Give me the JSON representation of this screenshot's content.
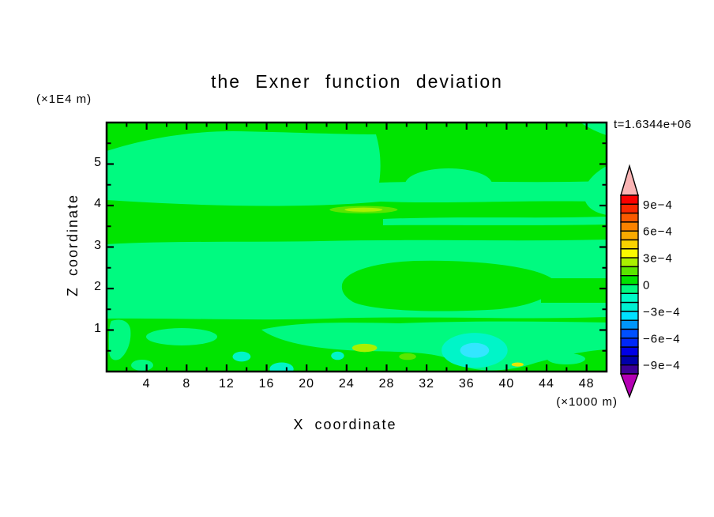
{
  "palette": {
    "background": "#ffffff",
    "frame": "#000000",
    "green": "#00e400",
    "spring_green": "#00fa80",
    "turquoise": "#00f5c8",
    "cyan": "#33e6ff",
    "chartreuse": "#5ae600",
    "yellow_green": "#aaf000",
    "yellow": "#e8e600"
  },
  "chart_data": {
    "type": "heatmap",
    "subtype": "filled-contour",
    "title": "the Exner function deviation",
    "time_annotation": "t=1.6344e+06",
    "xlabel": "X coordinate",
    "x_unit": "(×1000 m)",
    "ylabel": "Z coordinate",
    "y_unit": "(×1E4 m)",
    "xlim": [
      0,
      50
    ],
    "ylim": [
      0,
      6
    ],
    "x_major_ticks": [
      4,
      8,
      12,
      16,
      20,
      24,
      28,
      32,
      36,
      40,
      44,
      48
    ],
    "x_minor_interval": 2,
    "y_major_ticks": [
      1,
      2,
      3,
      4,
      5
    ],
    "y_minor_interval": 0.5,
    "grid": false,
    "contour_interval": 0.0001,
    "field_note": "Field is dominated by values between -1e-4 and +1e-4 (green above 0, spring green below 0), with small warm anomalies up to ~3e-4 and cool anomalies down to ~-3e-4 near the bottom of the domain.",
    "colorbar": {
      "position": "right",
      "over_color": "#fab4b4",
      "under_color": "#b400b4",
      "labels": [
        {
          "text": "9e−4",
          "level": 0.0009
        },
        {
          "text": "6e−4",
          "level": 0.0006
        },
        {
          "text": "3e−4",
          "level": 0.0003
        },
        {
          "text": "0",
          "level": 0
        },
        {
          "text": "−3e−4",
          "level": -0.0003
        },
        {
          "text": "−6e−4",
          "level": -0.0006
        },
        {
          "text": "−9e−4",
          "level": -0.0009
        }
      ],
      "segments": [
        {
          "min": 0.0009,
          "max": 0.001,
          "color": "#fa0000"
        },
        {
          "min": 0.0008,
          "max": 0.0009,
          "color": "#fa2800"
        },
        {
          "min": 0.0007,
          "max": 0.0008,
          "color": "#fa5a00"
        },
        {
          "min": 0.0006,
          "max": 0.0007,
          "color": "#fa8200"
        },
        {
          "min": 0.0005,
          "max": 0.0006,
          "color": "#faaa00"
        },
        {
          "min": 0.0004,
          "max": 0.0005,
          "color": "#fad200"
        },
        {
          "min": 0.0003,
          "max": 0.0004,
          "color": "#fafa00"
        },
        {
          "min": 0.0002,
          "max": 0.0003,
          "color": "#aaf000"
        },
        {
          "min": 0.0001,
          "max": 0.0002,
          "color": "#5ae600"
        },
        {
          "min": 0,
          "max": 0.0001,
          "color": "#00e400"
        },
        {
          "min": -0.0001,
          "max": 0,
          "color": "#00fa80"
        },
        {
          "min": -0.0002,
          "max": -0.0001,
          "color": "#00fac8"
        },
        {
          "min": -0.0003,
          "max": -0.0002,
          "color": "#00f0d2"
        },
        {
          "min": -0.0004,
          "max": -0.0003,
          "color": "#00e1ff"
        },
        {
          "min": -0.0005,
          "max": -0.0004,
          "color": "#0096fa"
        },
        {
          "min": -0.0006,
          "max": -0.0005,
          "color": "#0050ff"
        },
        {
          "min": -0.0007,
          "max": -0.0006,
          "color": "#0028fa"
        },
        {
          "min": -0.0008,
          "max": -0.0007,
          "color": "#0000e6"
        },
        {
          "min": -0.0009,
          "max": -0.0008,
          "color": "#0000aa"
        },
        {
          "min": -0.001,
          "max": -0.0009,
          "color": "#3c0096"
        }
      ]
    },
    "features": [
      {
        "name": "warm-streak-outer",
        "x": 25.7,
        "z": 3.9,
        "rx": 3.4,
        "ry": 0.09,
        "color": "chartreuse",
        "level": "1e-4 to 2e-4"
      },
      {
        "name": "warm-streak-core",
        "x": 25.7,
        "z": 3.9,
        "rx": 1.9,
        "ry": 0.05,
        "color": "yellow_green",
        "level": "2e-4 to 3e-4"
      },
      {
        "name": "cool-anomaly-outer",
        "x": 36.8,
        "z": 0.51,
        "rx": 3.3,
        "ry": 0.42,
        "color": "turquoise",
        "level": "-2e-4 to -1e-4"
      },
      {
        "name": "cool-anomaly-core",
        "x": 36.8,
        "z": 0.51,
        "rx": 1.45,
        "ry": 0.18,
        "color": "cyan",
        "level": "-3e-4 to -2e-4"
      },
      {
        "name": "cool-spot-left",
        "x": 13.5,
        "z": 0.36,
        "rx": 0.9,
        "ry": 0.12,
        "color": "turquoise",
        "level": "-2e-4"
      },
      {
        "name": "cool-spot-mid",
        "x": 23.1,
        "z": 0.38,
        "rx": 0.65,
        "ry": 0.1,
        "color": "turquoise",
        "level": "-2e-4"
      },
      {
        "name": "cool-spot-bottom",
        "x": 17.5,
        "z": 0.06,
        "rx": 1.2,
        "ry": 0.16,
        "color": "turquoise",
        "level": "-2e-4"
      },
      {
        "name": "warm-spot-a",
        "x": 25.8,
        "z": 0.57,
        "rx": 1.25,
        "ry": 0.1,
        "color": "yellow_green",
        "level": "2e-4"
      },
      {
        "name": "warm-spot-b",
        "x": 30.1,
        "z": 0.36,
        "rx": 0.85,
        "ry": 0.08,
        "color": "chartreuse",
        "level": "1e-4"
      },
      {
        "name": "warm-spot-c",
        "x": 41.1,
        "z": 0.17,
        "rx": 0.6,
        "ry": 0.05,
        "color": "yellow",
        "level": "3e-4"
      }
    ],
    "speckle_dots": [
      [
        26.0,
        2.2
      ],
      [
        28.5,
        2.05
      ],
      [
        31.0,
        2.3
      ],
      [
        24.0,
        2.0
      ],
      [
        33.5,
        1.95
      ],
      [
        29.5,
        2.2
      ]
    ],
    "x_tick_labels": [
      "4",
      "8",
      "12",
      "16",
      "20",
      "24",
      "28",
      "32",
      "36",
      "40",
      "44",
      "48"
    ],
    "y_tick_labels": [
      "1",
      "2",
      "3",
      "4",
      "5"
    ]
  }
}
